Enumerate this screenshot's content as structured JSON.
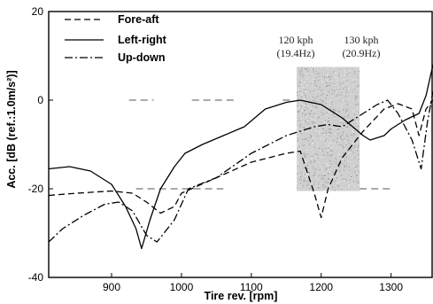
{
  "chart_data": {
    "type": "line",
    "xlabel": "Tire rev. [rpm]",
    "ylabel": "Acc. [dB (ref.:1.0m/s²)]",
    "xlim": [
      810,
      1360
    ],
    "ylim": [
      -40,
      20
    ],
    "xticks": [
      900,
      1000,
      1100,
      1200,
      1300
    ],
    "yticks": [
      20,
      0,
      -20,
      -40
    ],
    "legend_position": "top-left",
    "grid": "sparse dashed reference lines",
    "series": [
      {
        "name": "Fore-aft",
        "style": "dashed",
        "x": [
          810,
          850,
          900,
          930,
          950,
          970,
          990,
          1000,
          1050,
          1100,
          1150,
          1170,
          1190,
          1200,
          1210,
          1230,
          1260,
          1290,
          1310,
          1330,
          1340,
          1350,
          1360
        ],
        "y": [
          -21.5,
          -21,
          -20.5,
          -21,
          -23,
          -25.5,
          -24,
          -21,
          -17.5,
          -14,
          -12,
          -11.5,
          -21,
          -26.5,
          -20,
          -13,
          -7,
          -2,
          -0.8,
          -2,
          -8,
          -2,
          0
        ]
      },
      {
        "name": "Left-right",
        "style": "solid",
        "x": [
          810,
          840,
          870,
          900,
          920,
          935,
          943,
          955,
          970,
          990,
          1005,
          1030,
          1060,
          1090,
          1120,
          1150,
          1170,
          1200,
          1230,
          1260,
          1270,
          1290,
          1300,
          1320,
          1340,
          1350,
          1360
        ],
        "y": [
          -15.5,
          -15,
          -16,
          -19,
          -24,
          -29,
          -33.5,
          -27,
          -20,
          -15,
          -12,
          -10,
          -8,
          -6,
          -2,
          -0.5,
          0,
          -1,
          -4,
          -8,
          -9,
          -8,
          -6.5,
          -4.5,
          -3,
          1,
          8
        ]
      },
      {
        "name": "Up-down",
        "style": "dash-dot",
        "x": [
          810,
          830,
          860,
          890,
          910,
          930,
          950,
          965,
          990,
          1010,
          1050,
          1100,
          1150,
          1190,
          1210,
          1230,
          1260,
          1280,
          1295,
          1310,
          1330,
          1343,
          1352,
          1360
        ],
        "y": [
          -32,
          -29,
          -26,
          -23.5,
          -23,
          -25,
          -30.5,
          -32,
          -27,
          -20,
          -17.5,
          -12,
          -8,
          -6,
          -5.5,
          -6,
          -3,
          -1,
          0,
          -3,
          -9,
          -15.5,
          -5,
          2
        ]
      }
    ],
    "annotations": [
      {
        "line1": "120 kph",
        "line2": "(19.4Hz)"
      },
      {
        "line1": "130 kph",
        "line2": "(20.9Hz)"
      }
    ],
    "shaded_region": {
      "x": [
        1165,
        1255
      ],
      "y": [
        -20.5,
        7.5
      ]
    },
    "reference_lines": [
      {
        "y": 0,
        "x": [
          925,
          960
        ]
      },
      {
        "y": 0,
        "x": [
          1015,
          1075
        ]
      },
      {
        "y": 0,
        "x": [
          1145,
          1160
        ]
      },
      {
        "y": -20,
        "x": [
          935,
          1060
        ]
      },
      {
        "y": -20,
        "x": [
          1255,
          1300
        ]
      }
    ]
  }
}
